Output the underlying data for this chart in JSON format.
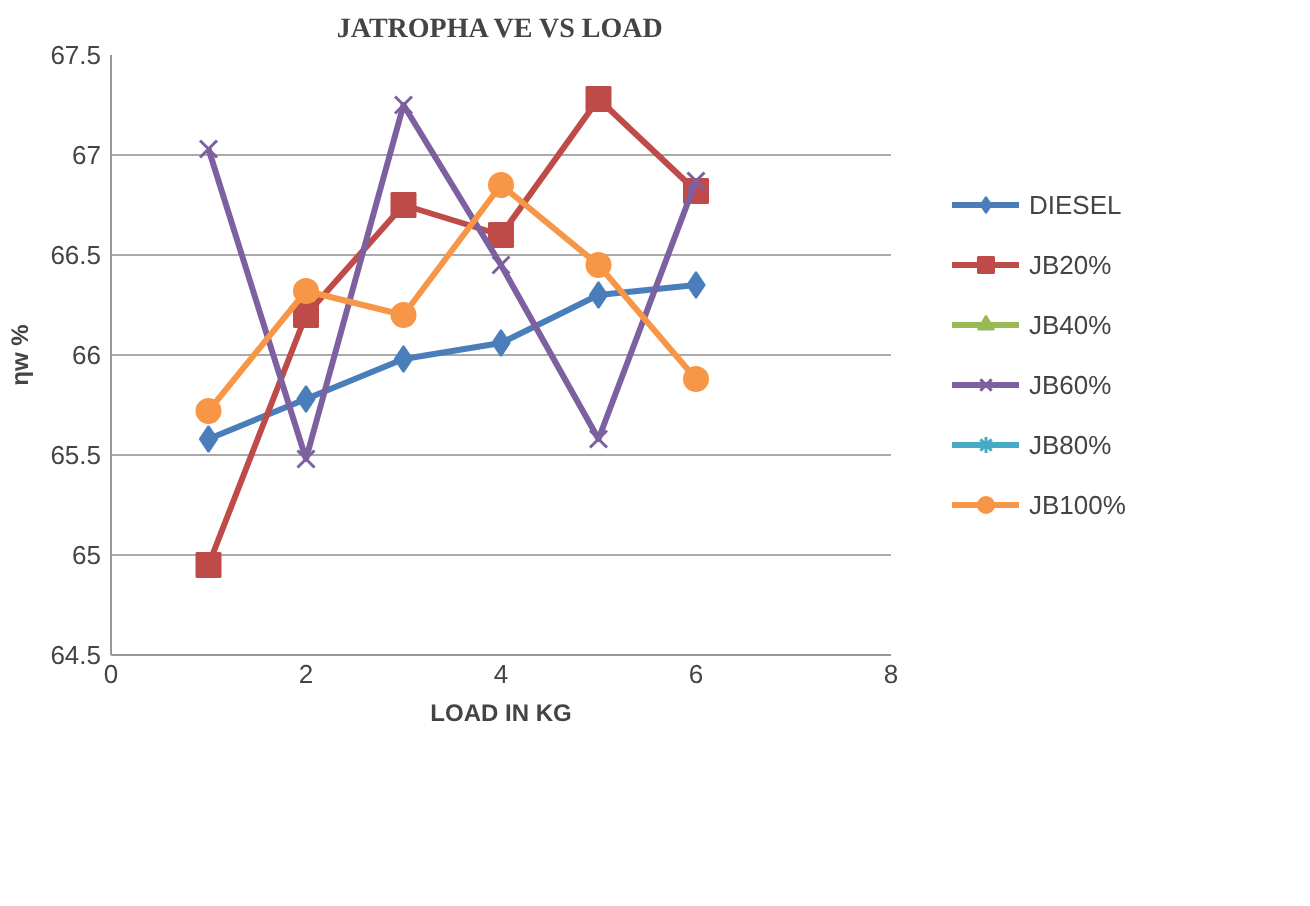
{
  "chart_data": {
    "type": "line",
    "title": "JATROPHA VE VS LOAD",
    "xlabel": "LOAD IN KG",
    "ylabel": "ηw %",
    "x": [
      1,
      2,
      3,
      4,
      5,
      6
    ],
    "xlim": [
      0,
      8
    ],
    "xticks": [
      0,
      2,
      4,
      6,
      8
    ],
    "ylim": [
      64.5,
      67.5
    ],
    "yticks": [
      64.5,
      65,
      65.5,
      66,
      66.5,
      67,
      67.5
    ],
    "grid": "y",
    "legend": "right",
    "series": [
      {
        "name": "DIESEL",
        "color": "#4a7ebb",
        "marker": "diamond",
        "values": [
          65.58,
          65.78,
          65.98,
          66.06,
          66.3,
          66.35
        ]
      },
      {
        "name": "JB20%",
        "color": "#be4b48",
        "marker": "square",
        "values": [
          64.95,
          66.2,
          66.75,
          66.6,
          67.28,
          66.82
        ]
      },
      {
        "name": "JB40%",
        "color": "#98b954",
        "marker": "triangle",
        "values": [
          null,
          null,
          null,
          null,
          null,
          null
        ]
      },
      {
        "name": "JB60%",
        "color": "#7d60a0",
        "marker": "cross",
        "values": [
          67.03,
          65.48,
          67.25,
          66.45,
          65.58,
          66.87
        ]
      },
      {
        "name": "JB80%",
        "color": "#46aac5",
        "marker": "cross",
        "values": [
          null,
          null,
          null,
          null,
          null,
          null
        ]
      },
      {
        "name": "JB100%",
        "color": "#f79646",
        "marker": "circle",
        "values": [
          65.72,
          66.32,
          66.2,
          66.85,
          66.45,
          65.88
        ]
      }
    ]
  }
}
